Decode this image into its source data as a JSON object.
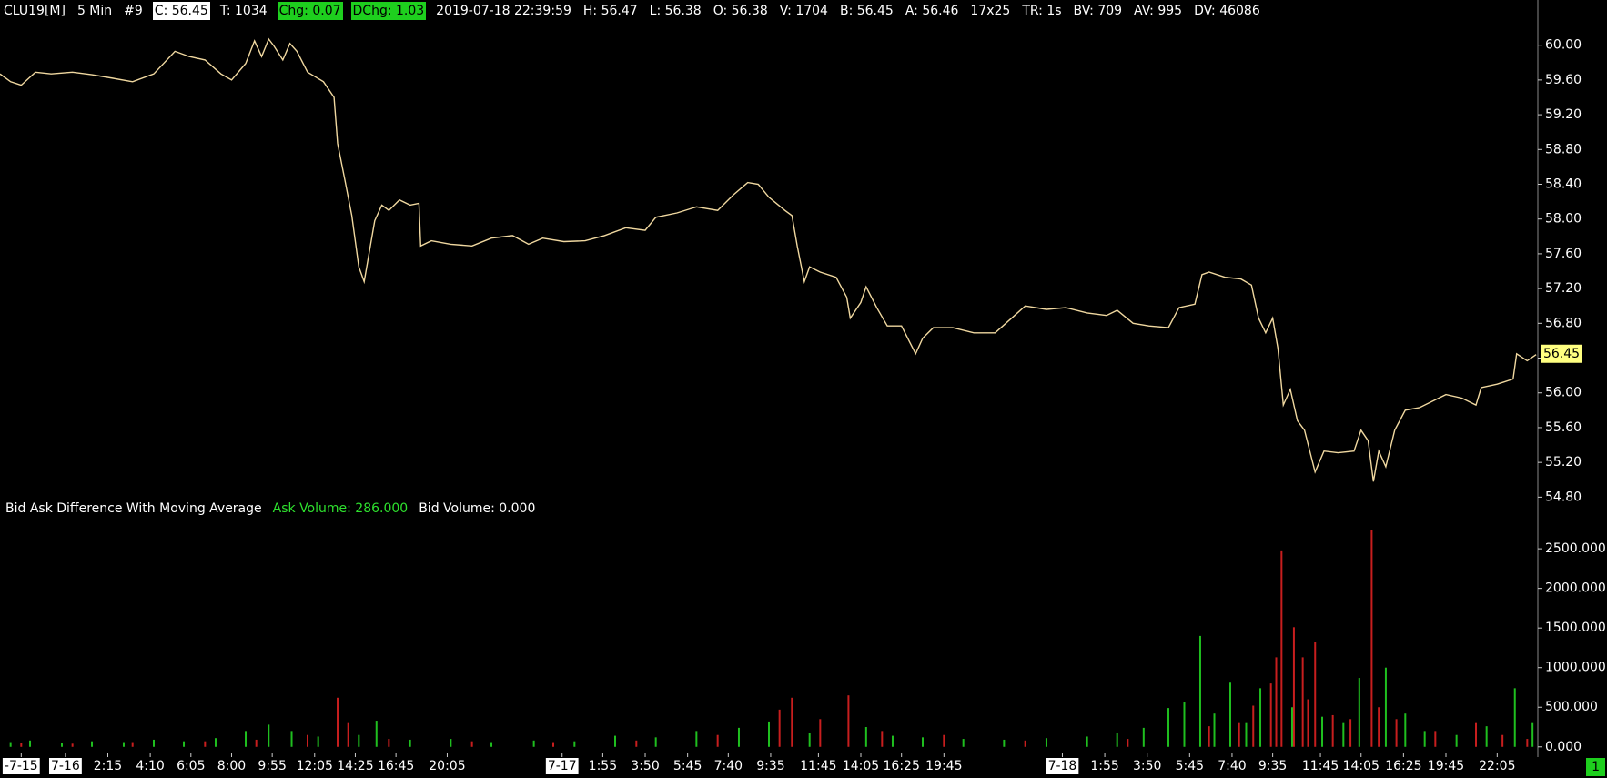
{
  "header": {
    "items": [
      "CLU19[M]",
      "5 Min",
      "#9",
      "C: 56.45",
      "T: 1034",
      "Chg: 0.07",
      "DChg: 1.03",
      "2019-07-18 22:39:59",
      "H: 56.47",
      "L: 56.38",
      "O: 56.38",
      "V: 1704",
      "B: 56.45",
      "A: 56.46",
      "17x25",
      "TR: 1s",
      "BV: 709",
      "AV: 995",
      "DV: 46086"
    ]
  },
  "corner_badge": "1",
  "chart_data": [
    {
      "type": "line",
      "x": [
        0,
        6,
        12,
        20,
        29,
        41,
        52,
        64,
        75,
        87,
        99,
        107,
        116,
        125,
        131,
        139,
        144,
        148,
        152,
        155,
        160,
        164,
        168,
        174,
        183,
        189,
        191,
        195,
        199,
        203,
        206,
        209,
        212,
        216,
        220,
        226,
        232,
        237,
        238,
        244,
        255,
        267,
        278,
        290,
        299,
        307,
        319,
        331,
        342,
        354,
        365,
        371,
        383,
        394,
        406,
        415,
        423,
        429,
        435,
        444,
        448,
        451,
        455,
        458,
        464,
        473,
        479,
        481,
        487,
        490,
        496,
        502,
        510,
        518,
        522,
        528,
        539,
        551,
        563,
        574,
        580,
        592,
        603,
        615,
        626,
        632,
        641,
        650,
        661,
        667,
        676,
        680,
        684,
        693,
        702,
        708,
        712,
        716,
        720,
        723,
        726,
        730,
        734,
        738,
        744,
        749,
        757,
        766,
        770,
        774,
        777,
        780,
        784,
        789,
        795,
        803,
        812,
        818,
        827,
        835,
        838,
        847,
        856,
        858,
        864,
        869
      ],
      "series": [
        {
          "color": "#f0d8a0",
          "values": [
            59.67,
            59.58,
            59.54,
            59.69,
            59.67,
            59.69,
            59.66,
            59.62,
            59.58,
            59.67,
            59.93,
            59.87,
            59.83,
            59.67,
            59.6,
            59.79,
            60.05,
            59.87,
            60.07,
            59.99,
            59.83,
            60.02,
            59.93,
            59.69,
            59.58,
            59.4,
            58.87,
            58.46,
            58.04,
            57.45,
            57.28,
            57.63,
            57.98,
            58.16,
            58.1,
            58.22,
            58.16,
            58.18,
            57.69,
            57.75,
            57.71,
            57.69,
            57.78,
            57.81,
            57.71,
            57.78,
            57.74,
            57.75,
            57.81,
            57.9,
            57.87,
            58.02,
            58.07,
            58.14,
            58.1,
            58.28,
            58.42,
            58.4,
            58.25,
            58.1,
            58.04,
            57.69,
            57.28,
            57.45,
            57.39,
            57.33,
            57.1,
            56.86,
            57.04,
            57.22,
            56.98,
            56.77,
            56.77,
            56.45,
            56.63,
            56.75,
            56.75,
            56.69,
            56.69,
            56.89,
            57.0,
            56.96,
            56.98,
            56.92,
            56.89,
            56.95,
            56.8,
            56.77,
            56.75,
            56.98,
            57.02,
            57.36,
            57.39,
            57.33,
            57.31,
            57.24,
            56.86,
            56.69,
            56.86,
            56.51,
            55.86,
            56.04,
            55.68,
            55.57,
            55.09,
            55.33,
            55.31,
            55.33,
            55.57,
            55.45,
            54.98,
            55.33,
            55.15,
            55.57,
            55.8,
            55.83,
            55.92,
            55.98,
            55.94,
            55.86,
            56.06,
            56.1,
            56.16,
            56.45,
            56.37,
            56.44
          ]
        }
      ],
      "xlim": [
        0,
        870
      ],
      "ylim": [
        54.72,
        60.52
      ],
      "yticks": [
        {
          "value": 54.8,
          "label": "54.80"
        },
        {
          "value": 55.2,
          "label": "55.20"
        },
        {
          "value": 55.6,
          "label": "55.60"
        },
        {
          "value": 56.0,
          "label": "56.00"
        },
        {
          "value": 56.4,
          "label": "56.40"
        },
        {
          "value": 56.8,
          "label": "56.80"
        },
        {
          "value": 57.2,
          "label": "57.20"
        },
        {
          "value": 57.6,
          "label": "57.60"
        },
        {
          "value": 58.0,
          "label": "58.00"
        },
        {
          "value": 58.4,
          "label": "58.40"
        },
        {
          "value": 58.8,
          "label": "58.80"
        },
        {
          "value": 59.2,
          "label": "59.20"
        },
        {
          "value": 59.6,
          "label": "59.60"
        },
        {
          "value": 60.0,
          "label": "60.00"
        }
      ],
      "last_price": {
        "value": 56.45,
        "label": "56.45"
      }
    },
    {
      "type": "bar",
      "title": "Bid Ask Difference With Moving Average",
      "legend": [
        "Ask Volume: 286.000",
        "Bid Volume: 0.000"
      ],
      "series": [
        {
          "color": "#1fbf1f",
          "x": [
            6,
            17,
            35,
            52,
            70,
            87,
            104,
            122,
            139,
            152,
            165,
            180,
            203,
            213,
            232,
            255,
            278,
            302,
            325,
            348,
            371,
            394,
            418,
            435,
            458,
            490,
            505,
            522,
            545,
            568,
            592,
            615,
            632,
            647,
            661,
            670,
            679,
            687,
            696,
            705,
            713,
            731,
            748,
            760,
            769,
            784,
            795,
            806,
            824,
            841,
            857,
            867
          ],
          "values": [
            60,
            80,
            50,
            70,
            60,
            90,
            70,
            110,
            200,
            280,
            200,
            130,
            150,
            330,
            90,
            100,
            60,
            80,
            70,
            140,
            120,
            200,
            240,
            320,
            180,
            250,
            140,
            120,
            100,
            90,
            110,
            130,
            180,
            240,
            490,
            560,
            1400,
            420,
            810,
            300,
            740,
            500,
            380,
            300,
            870,
            1000,
            420,
            200,
            150,
            260,
            740,
            300
          ]
        },
        {
          "color": "#c81e1e",
          "x": [
            12,
            41,
            75,
            116,
            145,
            174,
            191,
            197,
            220,
            267,
            313,
            360,
            406,
            441,
            448,
            464,
            480,
            499,
            534,
            580,
            638,
            684,
            701,
            709,
            719,
            722,
            725,
            732,
            737,
            740,
            744,
            754,
            764,
            776,
            780,
            790,
            812,
            835,
            850,
            864
          ],
          "values": [
            50,
            40,
            60,
            70,
            90,
            150,
            620,
            300,
            100,
            70,
            60,
            80,
            150,
            470,
            620,
            350,
            650,
            200,
            150,
            80,
            100,
            260,
            300,
            520,
            800,
            1130,
            2480,
            1510,
            1130,
            600,
            1320,
            400,
            350,
            2740,
            500,
            350,
            200,
            300,
            150,
            100
          ]
        }
      ],
      "xlim": [
        0,
        870
      ],
      "ylim": [
        -60,
        2800
      ],
      "yticks": [
        {
          "value": 0,
          "label": "0.000"
        },
        {
          "value": 500,
          "label": "500.000"
        },
        {
          "value": 1000,
          "label": "1000.000"
        },
        {
          "value": 1500,
          "label": "1500.000"
        },
        {
          "value": 2000,
          "label": "2000.000"
        },
        {
          "value": 2500,
          "label": "2500.000"
        }
      ],
      "xticks": [
        {
          "value": 12,
          "label": "-7-15"
        },
        {
          "value": 37,
          "label": "7-16"
        },
        {
          "value": 61,
          "label": "2:15"
        },
        {
          "value": 85,
          "label": "4:10"
        },
        {
          "value": 108,
          "label": "6:05"
        },
        {
          "value": 131,
          "label": "8:00"
        },
        {
          "value": 154,
          "label": "9:55"
        },
        {
          "value": 178,
          "label": "12:05"
        },
        {
          "value": 201,
          "label": "14:25"
        },
        {
          "value": 224,
          "label": "16:45"
        },
        {
          "value": 253,
          "label": "20:05"
        },
        {
          "value": 318,
          "label": "7-17"
        },
        {
          "value": 341,
          "label": "1:55"
        },
        {
          "value": 365,
          "label": "3:50"
        },
        {
          "value": 389,
          "label": "5:45"
        },
        {
          "value": 412,
          "label": "7:40"
        },
        {
          "value": 436,
          "label": "9:35"
        },
        {
          "value": 463,
          "label": "11:45"
        },
        {
          "value": 487,
          "label": "14:05"
        },
        {
          "value": 510,
          "label": "16:25"
        },
        {
          "value": 534,
          "label": "19:45"
        },
        {
          "value": 601,
          "label": "7-18"
        },
        {
          "value": 625,
          "label": "1:55"
        },
        {
          "value": 649,
          "label": "3:50"
        },
        {
          "value": 673,
          "label": "5:45"
        },
        {
          "value": 697,
          "label": "7:40"
        },
        {
          "value": 720,
          "label": "9:35"
        },
        {
          "value": 747,
          "label": "11:45"
        },
        {
          "value": 770,
          "label": "14:05"
        },
        {
          "value": 794,
          "label": "16:25"
        },
        {
          "value": 818,
          "label": "19:45"
        },
        {
          "value": 847,
          "label": "22:05"
        }
      ]
    }
  ]
}
